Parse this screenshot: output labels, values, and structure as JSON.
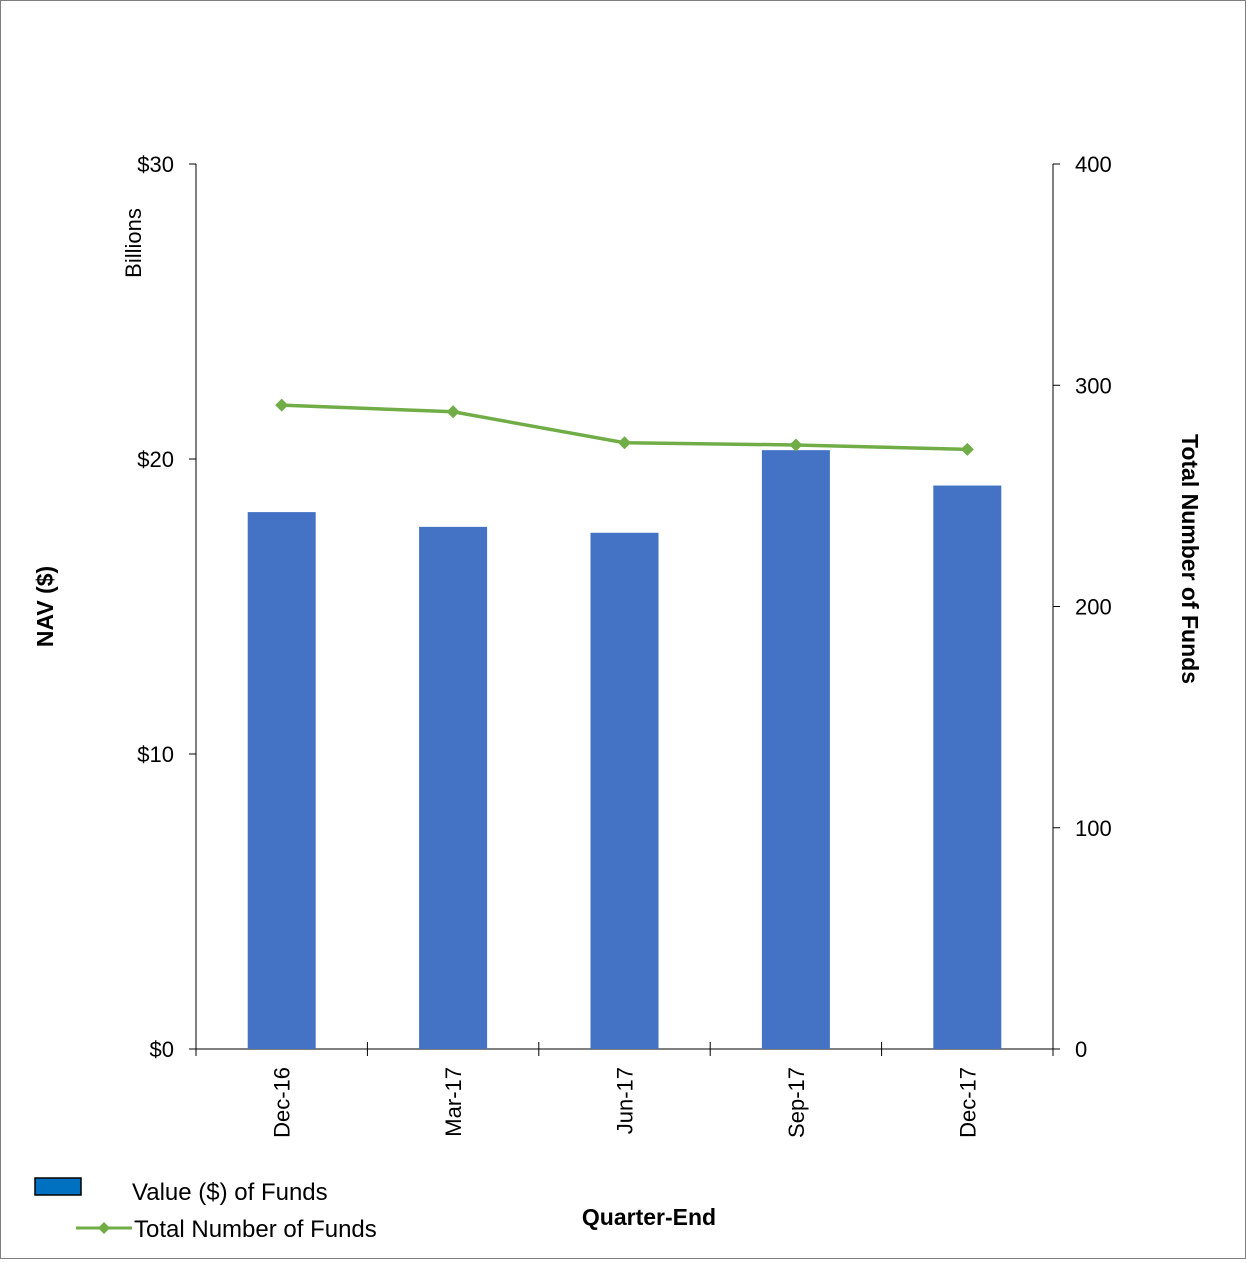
{
  "chart_data": {
    "type": "bar",
    "categories": [
      "Dec-16",
      "Mar-17",
      "Jun-17",
      "Sep-17",
      "Dec-17"
    ],
    "series": [
      {
        "name": "Value ($) of Funds",
        "type": "bar",
        "axis": "left",
        "color": "#4472C4",
        "values": [
          18.2,
          17.7,
          17.5,
          20.3,
          19.1
        ]
      },
      {
        "name": "Total Number of Funds",
        "type": "line",
        "axis": "right",
        "color": "#70AD47",
        "values": [
          291,
          288,
          274,
          273,
          271
        ]
      }
    ],
    "xlabel": "Quarter-End",
    "ylabel": "NAV ($)",
    "ylabel_unit": "Billions",
    "y2label": "Total Number of Funds",
    "ylim": [
      0,
      30
    ],
    "yticks": [
      "$0",
      "$10",
      "$20",
      "$30"
    ],
    "y2lim": [
      0,
      400
    ],
    "y2ticks": [
      "0",
      "100",
      "200",
      "300",
      "400"
    ],
    "legend_position": "bottom-left",
    "grid": false
  }
}
